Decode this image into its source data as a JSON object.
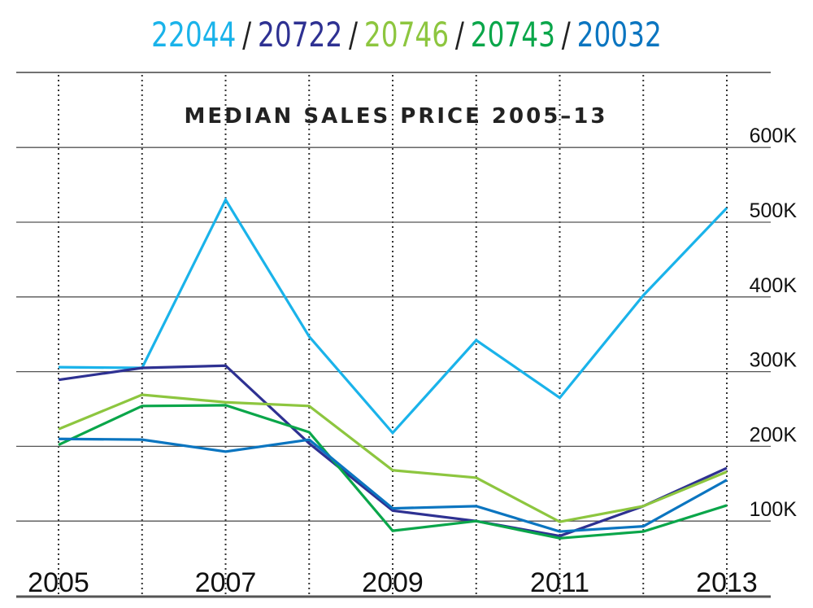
{
  "chart_data": {
    "type": "line",
    "title": "MEDIAN SALES PRICE 2005–13",
    "xlabel": "",
    "ylabel": "",
    "x": [
      2005,
      2006,
      2007,
      2008,
      2009,
      2010,
      2011,
      2012,
      2013
    ],
    "x_tick_labels": [
      "2005",
      "2007",
      "2009",
      "2011",
      "2013"
    ],
    "x_tick_values": [
      2005,
      2007,
      2009,
      2011,
      2013
    ],
    "y_tick_labels": [
      "100K",
      "200K",
      "300K",
      "400K",
      "500K",
      "600K"
    ],
    "y_tick_values": [
      100,
      200,
      300,
      400,
      500,
      600
    ],
    "ylim": [
      0,
      600
    ],
    "y_units": "thousands USD",
    "grid": "horizontal solid, vertical dotted",
    "legend_placement": "top (colored zip code header)",
    "series": [
      {
        "name": "22044",
        "color": "#1ab3ea",
        "values": [
          306,
          305,
          530,
          347,
          218,
          342,
          265,
          402,
          519
        ]
      },
      {
        "name": "20722",
        "color": "#2e3192",
        "values": [
          289,
          305,
          308,
          204,
          114,
          100,
          80,
          120,
          171
        ]
      },
      {
        "name": "20746",
        "color": "#8dc63f",
        "values": [
          223,
          269,
          259,
          254,
          168,
          158,
          99,
          120,
          166
        ]
      },
      {
        "name": "20743",
        "color": "#0aa64a",
        "values": [
          202,
          254,
          255,
          219,
          87,
          100,
          77,
          86,
          121
        ]
      },
      {
        "name": "20032",
        "color": "#0b75c0",
        "values": [
          210,
          209,
          193,
          209,
          117,
          120,
          86,
          93,
          155
        ]
      }
    ]
  },
  "separator": "/"
}
